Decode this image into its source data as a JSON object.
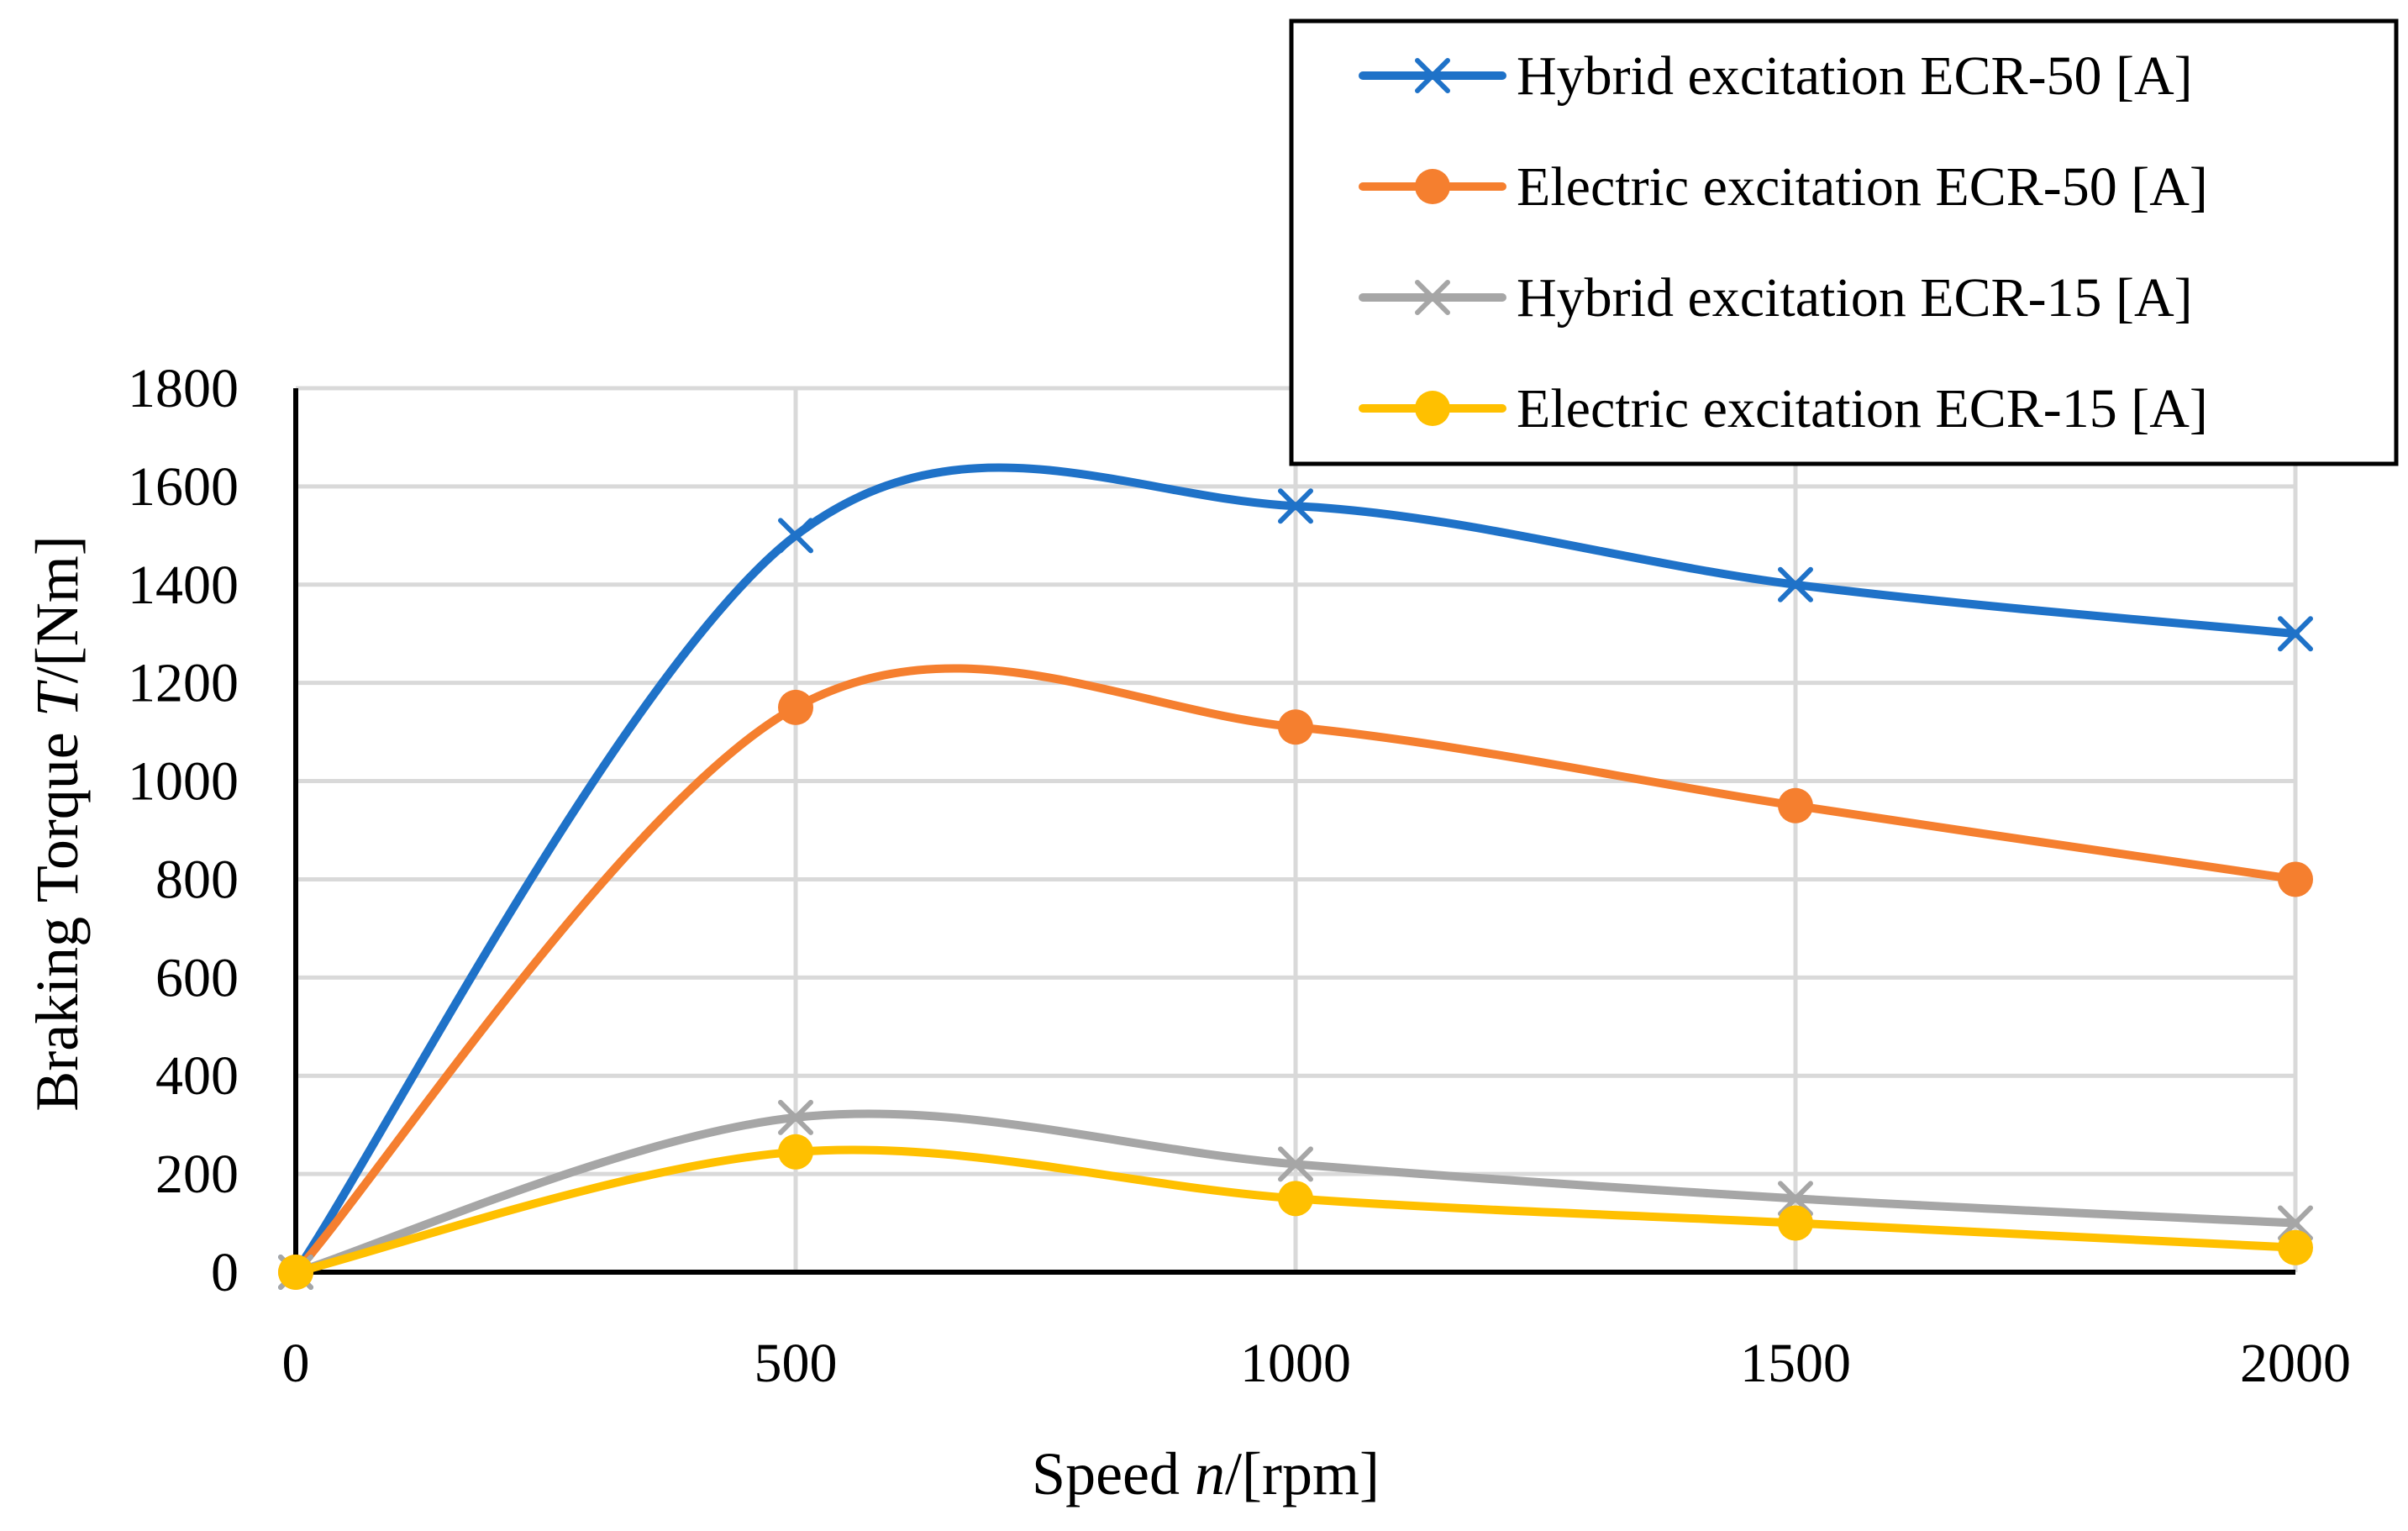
{
  "chart_data": {
    "type": "line",
    "title": "",
    "xlabel_parts": [
      "Speed ",
      "n",
      "/[rpm]"
    ],
    "ylabel_parts": [
      "Braking Torque ",
      "T",
      "/[Nm]"
    ],
    "x": [
      0,
      500,
      1000,
      1500,
      2000
    ],
    "xlim": [
      0,
      2000
    ],
    "ylim": [
      0,
      1800
    ],
    "xticks": [
      0,
      500,
      1000,
      1500,
      2000
    ],
    "yticks": [
      0,
      200,
      400,
      600,
      800,
      1000,
      1200,
      1400,
      1600,
      1800
    ],
    "grid": true,
    "legend_position": "top-right",
    "smooth": true,
    "series": [
      {
        "name": "Hybrid excitation ECR-50 [A]",
        "color": "#1f72c8",
        "marker": "x",
        "values": [
          0,
          1500,
          1560,
          1400,
          1300
        ]
      },
      {
        "name": "Electric excitation ECR-50 [A]",
        "color": "#f57f2f",
        "marker": "circle",
        "values": [
          0,
          1150,
          1110,
          950,
          800
        ]
      },
      {
        "name": "Hybrid excitation ECR-15 [A]",
        "color": "#a6a6a6",
        "marker": "x",
        "values": [
          0,
          315,
          220,
          150,
          100
        ]
      },
      {
        "name": "Electric excitation ECR-15 [A]",
        "color": "#ffc000",
        "marker": "circle",
        "values": [
          0,
          245,
          150,
          100,
          50
        ]
      }
    ]
  }
}
